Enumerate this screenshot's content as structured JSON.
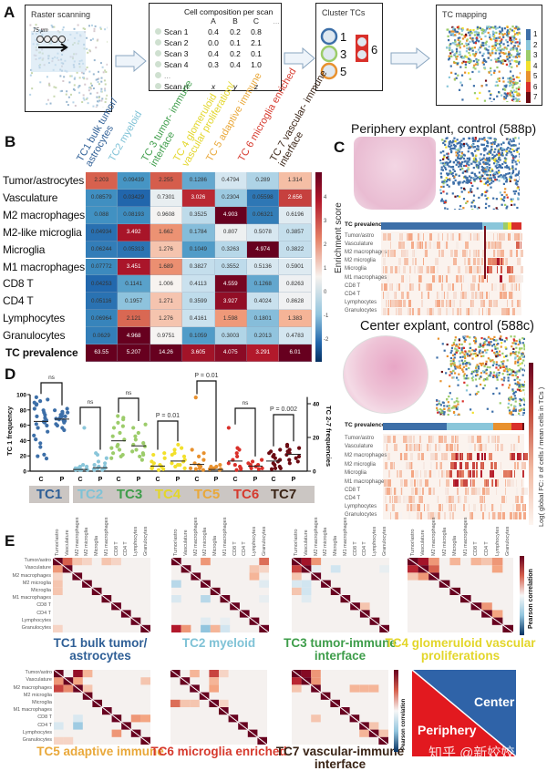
{
  "panel_labels": {
    "a": "A",
    "b": "B",
    "c": "C",
    "d": "D",
    "e": "E"
  },
  "panel_a": {
    "raster": {
      "title": "Raster scanning",
      "scale": "75 µm"
    },
    "composition": {
      "title": "Cell composition per scan",
      "columns": [
        "A",
        "B",
        "C",
        "..."
      ],
      "rows": [
        {
          "label": "Scan 1",
          "values": [
            "0.4",
            "0.2",
            "0.8"
          ]
        },
        {
          "label": "Scan 2",
          "values": [
            "0.0",
            "0.1",
            "2.1"
          ]
        },
        {
          "label": "Scan 3",
          "values": [
            "0.4",
            "0.2",
            "0.1"
          ]
        },
        {
          "label": "Scan 4",
          "values": [
            "0.3",
            "0.4",
            "1.0"
          ]
        },
        {
          "label": "...",
          "values": [
            "",
            "",
            ""
          ]
        },
        {
          "label": "Scan n",
          "values": [
            "x",
            "y",
            "z"
          ]
        }
      ]
    },
    "cluster": {
      "title": "Cluster TCs",
      "labels": [
        "1",
        "3",
        "5",
        "6"
      ]
    },
    "mapping": {
      "title": "TC mapping",
      "legend": [
        "1",
        "2",
        "3",
        "4",
        "5",
        "6",
        "7"
      ]
    }
  },
  "tc_colors": [
    "#3d6fa8",
    "#8ac6da",
    "#9ccc6a",
    "#f2e02c",
    "#e8912e",
    "#d9302a",
    "#6b0a12"
  ],
  "tc_text_colors": [
    "#2f5f96",
    "#7fc2d6",
    "#3e9d4a",
    "#e3d62a",
    "#e9a83a",
    "#d63a2e",
    "#3a2416"
  ],
  "chart_data": [
    {
      "type": "heatmap",
      "panel": "B",
      "columns": [
        "TC1 bulk tumor/ astrocytes",
        "TC2 myeloid",
        "TC 3 tumor- immune interface",
        "TC 4 glomeruloid vascular proliferation/",
        "TC 5 adaptive immune",
        "TC 6 microglia enriched",
        "TC 7 vascular- immune interface"
      ],
      "rows": [
        "Tumor/astrocytes",
        "Vasculature",
        "M2 macrophages",
        "M2-like microglia",
        "Microglia",
        "M1 macrophages",
        "CD8 T",
        "CD4 T",
        "Lymphocytes",
        "Granulocytes",
        "TC prevalence"
      ],
      "values": [
        [
          "2.203",
          "0.09439",
          "2.255",
          "0.1286",
          "0.4794",
          "0.289",
          "1.314"
        ],
        [
          "0.08579",
          "0.03429",
          "0.7301",
          "3.026",
          "0.2304",
          "0.05598",
          "2.656"
        ],
        [
          "0.088",
          "0.08193",
          "0.9608",
          "0.3525",
          "4.903",
          "0.06321",
          "0.6196"
        ],
        [
          "0.04934",
          "3.492",
          "1.662",
          "0.1784",
          "0.807",
          "0.5078",
          "0.3857"
        ],
        [
          "0.06244",
          "0.05313",
          "1.276",
          "0.1049",
          "0.3263",
          "4.974",
          "0.3822"
        ],
        [
          "0.07772",
          "3.451",
          "1.689",
          "0.3827",
          "0.3552",
          "0.5136",
          "0.5901"
        ],
        [
          "0.04253",
          "0.1141",
          "1.006",
          "0.4113",
          "4.559",
          "0.1268",
          "0.8263"
        ],
        [
          "0.05116",
          "0.1957",
          "1.271",
          "0.3599",
          "3.927",
          "0.4024",
          "0.8628"
        ],
        [
          "0.06964",
          "2.121",
          "1.276",
          "0.4161",
          "1.598",
          "0.1801",
          "1.383"
        ],
        [
          "0.0629",
          "4.968",
          "0.9751",
          "0.1059",
          "0.3003",
          "0.2013",
          "0.4783"
        ],
        [
          "63.55",
          "5.207",
          "14.26",
          "3.605",
          "4.075",
          "3.291",
          "6.01"
        ]
      ],
      "colorbar": {
        "label": "Enrichment score",
        "ticks": [
          "4",
          "3",
          "2",
          "1",
          "0",
          "-1",
          "-2"
        ]
      }
    },
    {
      "type": "heatmap",
      "panel": "C-periphery",
      "title": "Periphery explant, control (588p)",
      "prevalence_label": "TC prevalence",
      "prevalence_fractions": [
        0.72,
        0.15,
        0.03,
        0.03,
        0,
        0.07,
        0
      ],
      "rows": [
        "Tumor/astro",
        "Vasculature",
        "M2 macrophages",
        "M2 microglia",
        "Microglia",
        "M1 macrophages",
        "CD8 T",
        "CD4 T",
        "Lymphocytes",
        "Granulocytes"
      ]
    },
    {
      "type": "heatmap",
      "panel": "C-center",
      "title": "Center explant, control (588c)",
      "prevalence_label": "TC prevalence",
      "prevalence_fractions": [
        0.45,
        0.33,
        0,
        0,
        0.13,
        0.075,
        0.015
      ],
      "rows": [
        "Tumor/astro",
        "Vasculature",
        "M2 macrophages",
        "M2 microglia",
        "Microglia",
        "M1 macrophages",
        "CD8 T",
        "CD4 T",
        "Lymphocytes",
        "Granulocytes"
      ],
      "colorbar": {
        "label": "Log( global FC: # of cells / mean cells in TCs )"
      }
    },
    {
      "type": "scatter",
      "panel": "D",
      "ylabel_left": "TC 1 frequency",
      "ylabel_right": "TC 2-7 frequencies",
      "ylim_left": [
        0,
        100
      ],
      "yticks_left": [
        "0",
        "20",
        "40",
        "60",
        "80",
        "100"
      ],
      "ylim_right": [
        0,
        40
      ],
      "yticks_right": [
        "0",
        "20",
        "40"
      ],
      "groups": [
        {
          "name": "TC1",
          "C": [
            95,
            92,
            90,
            88,
            86,
            85,
            80,
            78,
            75,
            72,
            70,
            68,
            65,
            63,
            62,
            60,
            58,
            55,
            50,
            45,
            40,
            35,
            30,
            20,
            18,
            15
          ],
          "P": [
            80,
            78,
            76,
            75,
            74,
            72,
            70,
            70,
            68,
            67,
            66,
            65,
            64,
            62,
            60,
            58,
            55,
            52
          ],
          "stat": "ns",
          "axis": "left"
        },
        {
          "name": "TC2",
          "C": [
            25,
            3,
            2,
            2,
            1,
            1,
            0.5,
            0.5,
            0,
            0,
            0,
            0
          ],
          "P": [
            10,
            9,
            7,
            5,
            4,
            3,
            2,
            2,
            1,
            1,
            0.5,
            0,
            0
          ],
          "stat": "ns",
          "axis": "right"
        },
        {
          "name": "TC3",
          "C": [
            32,
            31,
            30,
            28,
            26,
            25,
            22,
            20,
            18,
            15,
            14,
            13,
            12,
            10,
            9,
            8,
            7
          ],
          "P": [
            27,
            25,
            22,
            20,
            18,
            16,
            15,
            14,
            12,
            11,
            10,
            9,
            8,
            6
          ],
          "stat": "ns",
          "axis": "right"
        },
        {
          "name": "TC4",
          "C": [
            10,
            9,
            7,
            5,
            4,
            3,
            2,
            2,
            1,
            1,
            0.5,
            0
          ],
          "P": [
            15,
            13,
            12,
            10,
            9,
            8,
            6,
            5,
            4,
            3,
            3,
            2,
            1
          ],
          "stat": "P = 0.01",
          "axis": "right"
        },
        {
          "name": "TC5",
          "C": [
            43,
            12,
            10,
            8,
            6,
            4,
            3,
            2,
            1,
            1,
            0.5,
            0
          ],
          "P": [
            3,
            2,
            2,
            1,
            1,
            0.5,
            0.5,
            0
          ],
          "stat": "P = 0.01",
          "axis": "right"
        },
        {
          "name": "TC6",
          "C": [
            25,
            13,
            12,
            10,
            8,
            6,
            4,
            3,
            2,
            1,
            0.5,
            0
          ],
          "P": [
            6,
            5,
            4,
            3,
            3,
            2,
            2,
            1,
            1,
            0.5
          ],
          "stat": "ns",
          "axis": "right"
        },
        {
          "name": "TC7",
          "C": [
            12,
            11,
            10,
            9,
            8,
            7,
            6,
            5,
            4,
            3,
            2,
            1,
            1,
            0.5
          ],
          "P": [
            15,
            14,
            13,
            12,
            11,
            10,
            9,
            8,
            7,
            6,
            5,
            4
          ],
          "stat": "P = 0.002",
          "axis": "right"
        }
      ],
      "xticks": [
        "C",
        "P"
      ]
    },
    {
      "type": "heatmap",
      "panel": "E",
      "labels": [
        "Tumor/astro",
        "Vasculature",
        "M2 macrophages",
        "M2 microglia",
        "Microglia",
        "M1 macrophages",
        "CD8 T",
        "CD4 T",
        "Lymphocytes",
        "Granulocytes"
      ],
      "colorbar": {
        "label": "Pearson correlation"
      },
      "matrices": [
        {
          "title": "TC1 bulk tumor/ astrocytes",
          "cells": [
            [
              0,
              1,
              0.5
            ],
            [
              0,
              2,
              0.15
            ],
            [
              0,
              3,
              0.1
            ],
            [
              0,
              5,
              0.15
            ],
            [
              0,
              6,
              0.1
            ],
            [
              1,
              0,
              0.3
            ],
            [
              2,
              0,
              0.1
            ],
            [
              3,
              0,
              0.15
            ],
            [
              4,
              0,
              0.15
            ],
            [
              9,
              0,
              0.1
            ]
          ]
        },
        {
          "title": "TC2 myeloid",
          "cells": [
            [
              0,
              3,
              0.3
            ],
            [
              0,
              9,
              0.45
            ],
            [
              1,
              8,
              0.15
            ],
            [
              1,
              9,
              0.1
            ],
            [
              2,
              8,
              0.2
            ],
            [
              3,
              0,
              -0.35
            ],
            [
              3,
              9,
              -0.15
            ],
            [
              5,
              0,
              -0.2
            ],
            [
              5,
              3,
              -0.35
            ],
            [
              5,
              9,
              -0.1
            ],
            [
              8,
              3,
              -0.15
            ],
            [
              8,
              5,
              -0.1
            ],
            [
              9,
              0,
              0.75
            ],
            [
              9,
              1,
              0.3
            ],
            [
              9,
              3,
              -0.5
            ],
            [
              9,
              4,
              0.2
            ],
            [
              9,
              5,
              -0.25
            ]
          ]
        },
        {
          "title": "TC3 tumor-immune interface",
          "cells": [
            [
              0,
              1,
              0.8
            ],
            [
              0,
              2,
              0.3
            ],
            [
              1,
              0,
              0.6
            ],
            [
              1,
              2,
              -0.1
            ],
            [
              1,
              4,
              -0.25
            ],
            [
              1,
              9,
              -0.1
            ],
            [
              2,
              0,
              0.15
            ],
            [
              3,
              0,
              -0.2
            ],
            [
              3,
              1,
              -0.25
            ],
            [
              4,
              0,
              0.15
            ],
            [
              4,
              1,
              -0.25
            ],
            [
              5,
              1,
              -0.15
            ],
            [
              6,
              7,
              0.15
            ]
          ]
        },
        {
          "title": "TC4 glomeruloid vascular proliferations",
          "cells": [
            [
              0,
              1,
              0.8
            ],
            [
              0,
              2,
              0.3
            ],
            [
              0,
              4,
              0.2
            ],
            [
              0,
              6,
              0.2
            ],
            [
              0,
              7,
              0.15
            ],
            [
              0,
              8,
              0.3
            ],
            [
              1,
              0,
              0.7
            ],
            [
              1,
              2,
              0.5
            ],
            [
              1,
              8,
              0.25
            ],
            [
              2,
              0,
              0.15
            ],
            [
              2,
              1,
              0.3
            ],
            [
              6,
              7,
              0.3
            ],
            [
              7,
              8,
              0.25
            ]
          ]
        },
        {
          "title": "TC5 adaptive immune",
          "cells": [
            [
              0,
              2,
              0.85
            ],
            [
              0,
              3,
              0.2
            ],
            [
              1,
              0,
              0.3
            ],
            [
              1,
              2,
              0.25
            ],
            [
              1,
              9,
              0.15
            ],
            [
              2,
              0,
              0.6
            ],
            [
              2,
              1,
              0.35
            ],
            [
              2,
              3,
              0.15
            ],
            [
              6,
              2,
              -0.2
            ],
            [
              6,
              8,
              0.3
            ],
            [
              6,
              9,
              0.25
            ],
            [
              7,
              0,
              -0.2
            ],
            [
              7,
              2,
              -0.45
            ],
            [
              8,
              6,
              0.3
            ],
            [
              9,
              0,
              0.1
            ],
            [
              9,
              1,
              0.1
            ]
          ]
        },
        {
          "title": "TC6 microglia enriched",
          "cells": [
            [
              0,
              2,
              0.2
            ],
            [
              0,
              4,
              0.6
            ],
            [
              0,
              5,
              0.1
            ],
            [
              1,
              4,
              0.2
            ],
            [
              2,
              4,
              0.25
            ],
            [
              4,
              0,
              0.45
            ],
            [
              4,
              1,
              0.15
            ],
            [
              4,
              2,
              0.15
            ],
            [
              4,
              5,
              0.1
            ]
          ]
        },
        {
          "title": "TC7 vascular-immune interface",
          "cells": [
            [
              0,
              1,
              0.9
            ],
            [
              0,
              2,
              0.3
            ],
            [
              1,
              0,
              0.7
            ],
            [
              1,
              2,
              0.3
            ],
            [
              2,
              0,
              0.15
            ],
            [
              2,
              6,
              0.2
            ],
            [
              2,
              7,
              0.2
            ],
            [
              2,
              8,
              0.2
            ],
            [
              6,
              2,
              0.15
            ],
            [
              7,
              8,
              0.15
            ],
            [
              8,
              7,
              0.2
            ],
            [
              8,
              9,
              0.15
            ]
          ]
        }
      ]
    }
  ],
  "legend_box": {
    "center": "Center",
    "periphery": "Periphery",
    "center_color": "#2f63a8",
    "periphery_color": "#e2191f"
  },
  "watermark": "知乎 @新姣姣"
}
